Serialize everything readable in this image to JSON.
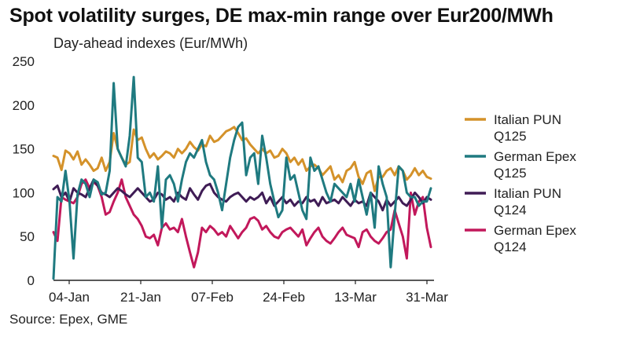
{
  "chart_data": {
    "type": "line",
    "title": "Spot volatility surges, DE max-min range over Eur200/MWh",
    "subtitle": "Day-ahead indexes (Eur/MWh)",
    "source": "Source: Epex, GME",
    "xlabel": "",
    "ylabel": "",
    "ylim": [
      0,
      250
    ],
    "yticks": [
      0,
      50,
      100,
      150,
      200,
      250
    ],
    "xticks": [
      "04-Jan",
      "21-Jan",
      "07-Feb",
      "24-Feb",
      "13-Mar",
      "31-Mar"
    ],
    "grid": false,
    "legend_position": "right",
    "series": [
      {
        "name": "Italian PUN Q125",
        "legend_lines": [
          "Italian PUN",
          "Q125"
        ],
        "color": "#D4922A",
        "values": [
          142,
          140,
          126,
          148,
          145,
          138,
          147,
          132,
          138,
          132,
          125,
          128,
          140,
          125,
          135,
          168,
          150,
          140,
          132,
          135,
          172,
          160,
          163,
          150,
          140,
          145,
          138,
          142,
          147,
          145,
          140,
          150,
          145,
          150,
          158,
          152,
          148,
          155,
          153,
          165,
          158,
          160,
          165,
          170,
          172,
          175,
          168,
          160,
          162,
          155,
          150,
          145,
          150,
          145,
          148,
          140,
          142,
          150,
          145,
          135,
          140,
          132,
          138,
          125,
          130,
          132,
          128,
          120,
          125,
          130,
          115,
          120,
          112,
          125,
          128,
          135,
          118,
          110,
          122,
          125,
          102,
          118,
          118,
          125,
          128,
          120,
          130,
          125,
          115,
          120,
          128,
          120,
          125,
          118,
          116
        ]
      },
      {
        "name": "German Epex Q125",
        "legend_lines": [
          "German Epex",
          "Q125"
        ],
        "color": "#1F7A80",
        "values": [
          2,
          95,
          90,
          125,
          90,
          25,
          98,
          115,
          110,
          95,
          115,
          112,
          98,
          100,
          125,
          225,
          150,
          140,
          130,
          165,
          232,
          140,
          135,
          95,
          100,
          90,
          130,
          60,
          115,
          120,
          110,
          90,
          115,
          135,
          145,
          140,
          150,
          160,
          135,
          120,
          115,
          100,
          80,
          110,
          140,
          160,
          175,
          180,
          120,
          140,
          145,
          110,
          165,
          140,
          110,
          90,
          72,
          80,
          140,
          115,
          120,
          100,
          80,
          70,
          140,
          125,
          130,
          115,
          100,
          90,
          110,
          105,
          100,
          95,
          110,
          90,
          115,
          95,
          75,
          100,
          60,
          130,
          110,
          95,
          15,
          75,
          130,
          125,
          100,
          95,
          95,
          85,
          90,
          90,
          105
        ]
      },
      {
        "name": "Italian PUN Q124",
        "legend_lines": [
          "Italian PUN",
          "Q124"
        ],
        "color": "#3F1C55",
        "values": [
          104,
          108,
          95,
          100,
          90,
          105,
          100,
          98,
          95,
          105,
          115,
          108,
          100,
          98,
          95,
          100,
          105,
          102,
          98,
          95,
          100,
          105,
          100,
          95,
          90,
          92,
          100,
          98,
          92,
          95,
          90,
          100,
          95,
          92,
          105,
          98,
          92,
          102,
          108,
          110,
          100,
          95,
          92,
          90,
          95,
          98,
          100,
          95,
          90,
          95,
          92,
          95,
          100,
          88,
          95,
          85,
          90,
          95,
          88,
          92,
          85,
          90,
          88,
          95,
          90,
          92,
          85,
          95,
          88,
          90,
          92,
          88,
          95,
          90,
          85,
          92,
          88,
          90,
          85,
          100,
          95,
          90,
          80,
          92,
          85,
          90,
          95,
          88,
          85,
          92,
          100,
          95,
          88,
          95,
          92
        ]
      },
      {
        "name": "German Epex Q124",
        "legend_lines": [
          "German Epex",
          "Q124"
        ],
        "color": "#C2185B",
        "values": [
          55,
          45,
          95,
          92,
          90,
          88,
          95,
          110,
          115,
          105,
          112,
          108,
          95,
          75,
          78,
          90,
          100,
          115,
          95,
          85,
          75,
          70,
          62,
          50,
          48,
          52,
          40,
          60,
          65,
          58,
          60,
          55,
          70,
          50,
          32,
          15,
          32,
          60,
          55,
          62,
          58,
          52,
          55,
          50,
          62,
          55,
          48,
          55,
          60,
          70,
          72,
          68,
          58,
          62,
          55,
          50,
          48,
          55,
          58,
          60,
          55,
          50,
          58,
          40,
          48,
          55,
          60,
          50,
          45,
          42,
          48,
          55,
          60,
          52,
          50,
          48,
          38,
          55,
          58,
          50,
          45,
          42,
          48,
          55,
          58,
          80,
          65,
          50,
          25,
          100,
          75,
          90,
          95,
          60,
          38
        ]
      }
    ]
  }
}
